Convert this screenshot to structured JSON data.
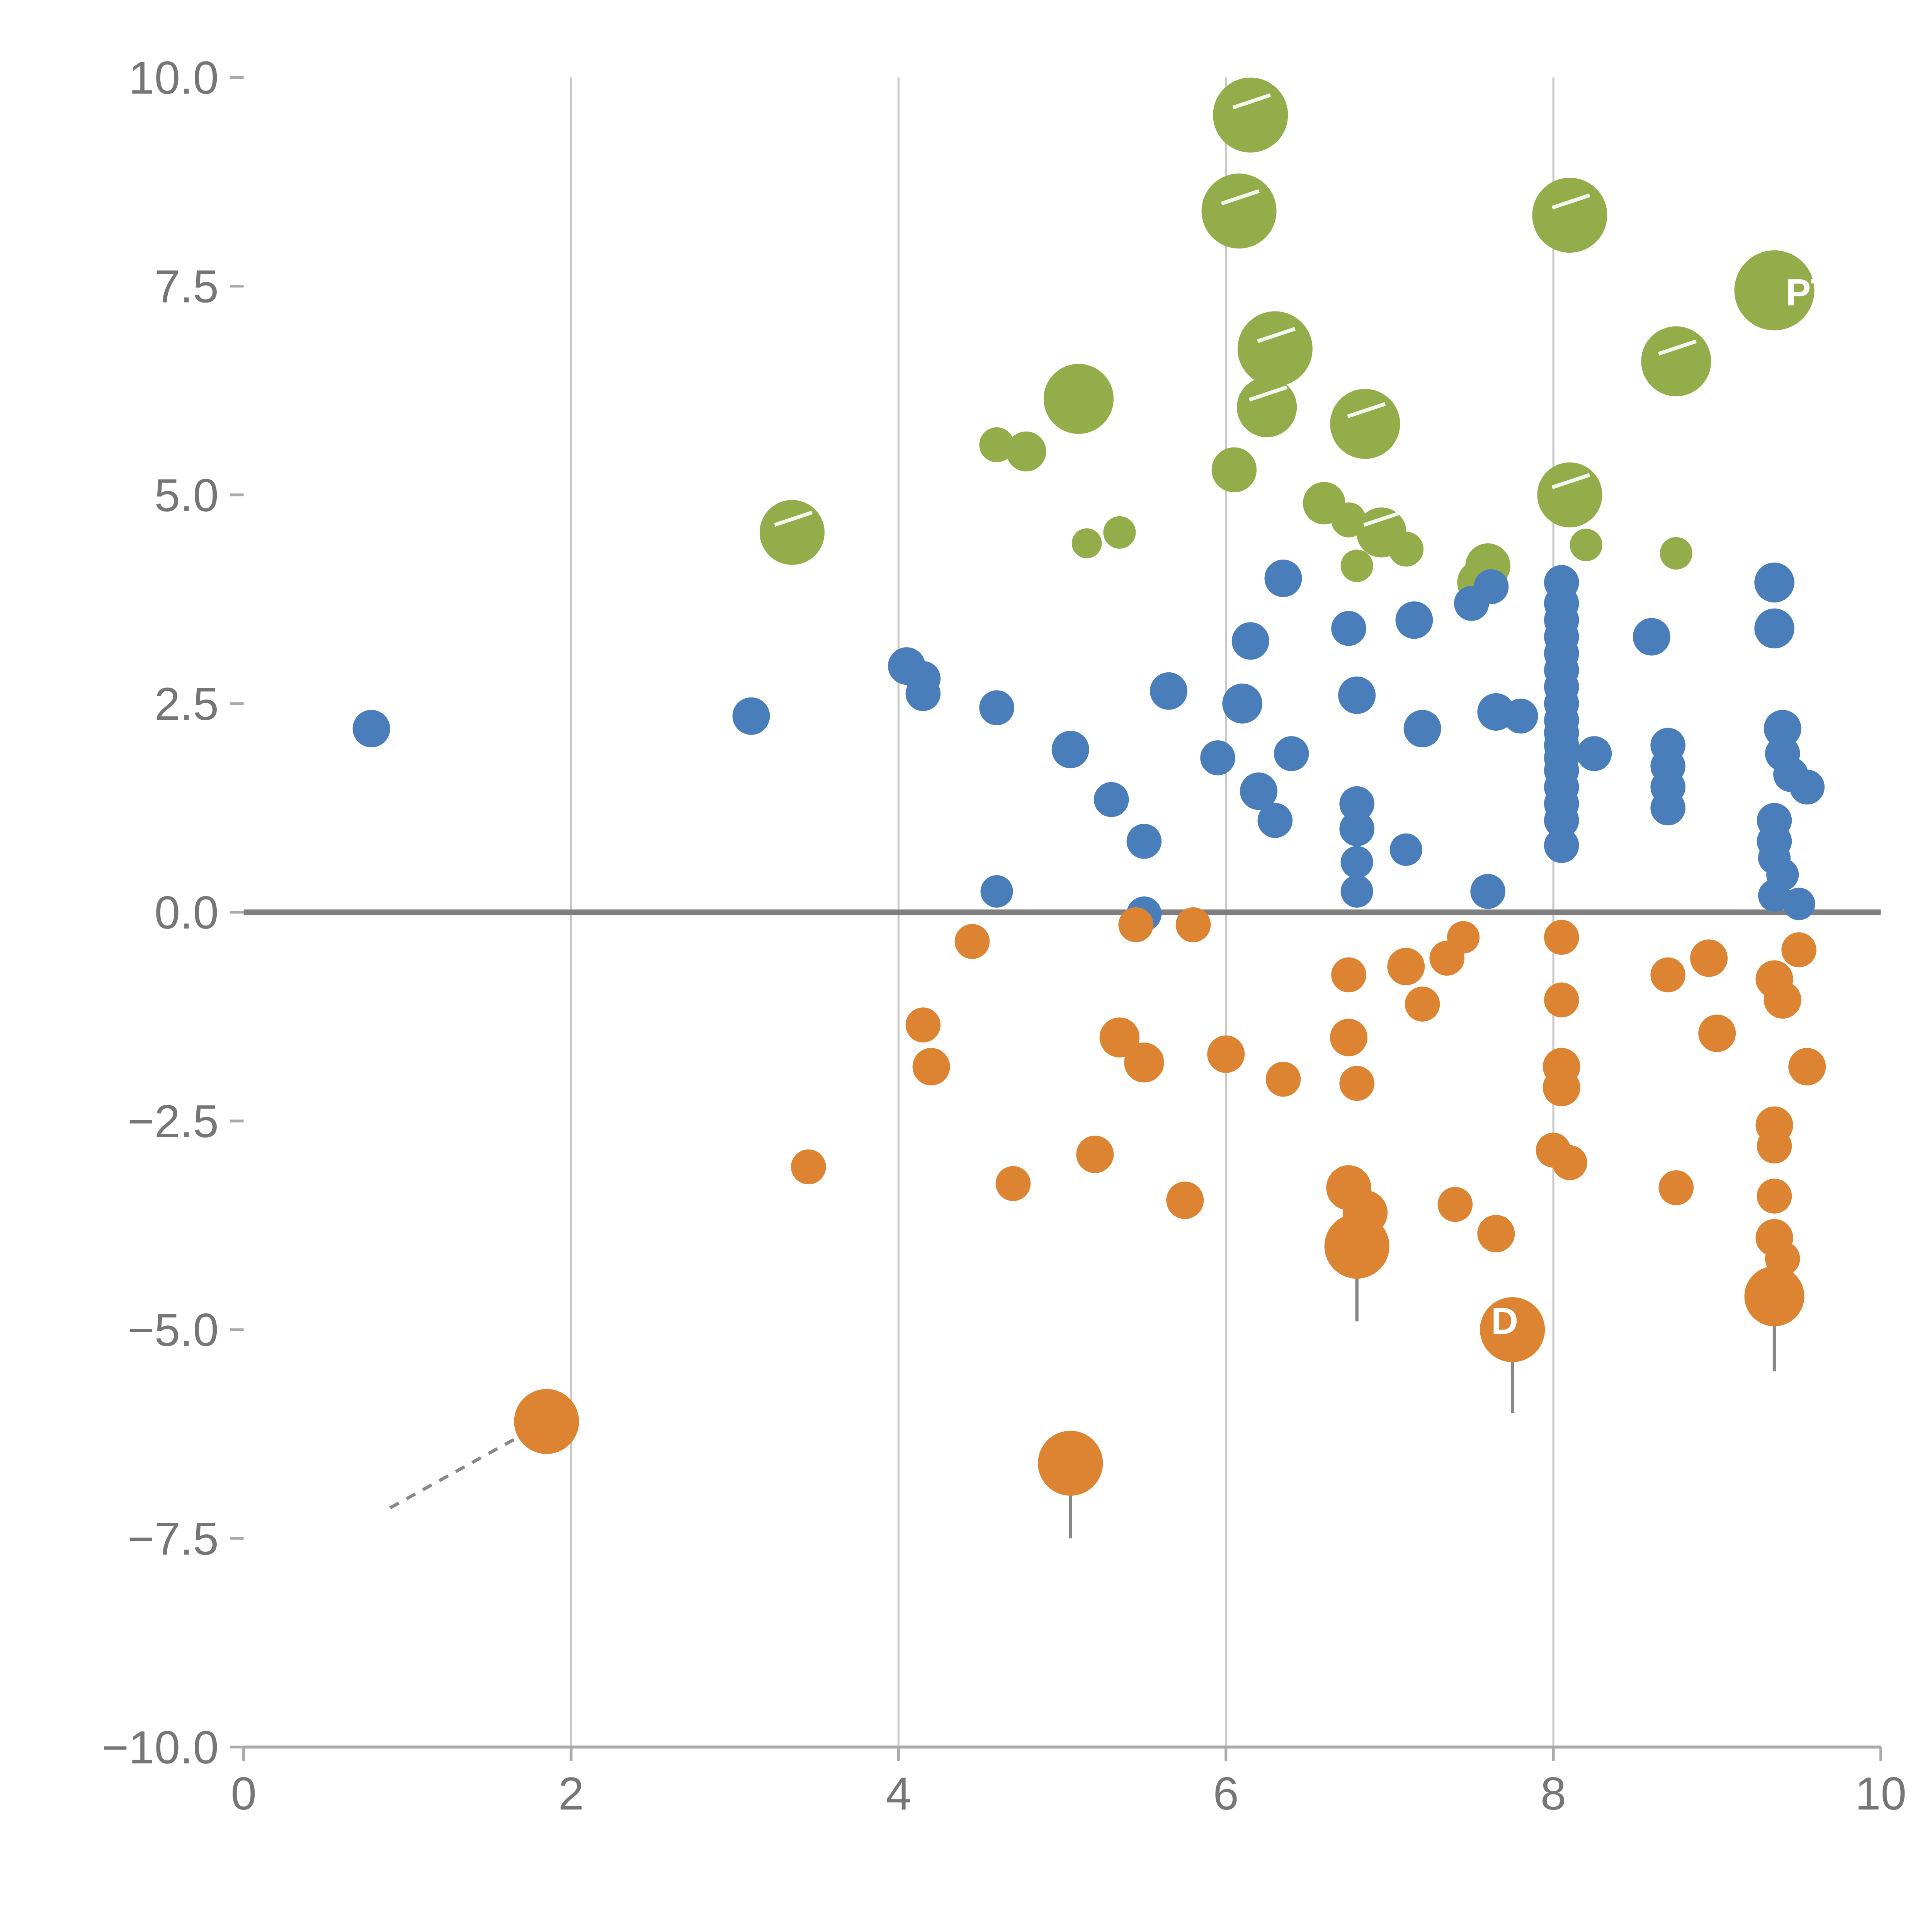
{
  "chart_data": {
    "type": "scatter",
    "title": "",
    "xlabel": "",
    "ylabel": "",
    "xlim": [
      0,
      10
    ],
    "ylim": [
      -10,
      10
    ],
    "grid": "vertical-only",
    "legend": "none",
    "x_tick_values": [
      0,
      2,
      4,
      6,
      8,
      10
    ],
    "x_tick_labels": [
      "0",
      "2",
      "4",
      "6",
      "8",
      "10"
    ],
    "y_tick_values": [
      -10,
      -7.5,
      -5,
      -2.5,
      0,
      2.5,
      5,
      7.5,
      10
    ],
    "y_tick_labels": [
      "−10.0",
      "−7.5",
      "−5.0",
      "−2.5",
      "0.0",
      "2.5",
      "5.0",
      "7.5",
      "10.0"
    ],
    "grid_vertical_at": [
      2,
      4,
      6,
      8
    ],
    "zero_line_y": 0,
    "colors": {
      "green": "#93ad4b",
      "blue": "#4a7ebb",
      "orange": "#dd8432",
      "gridline": "#c9c9c9",
      "zero_line": "#7f7f7f",
      "axis": "#aaaaaa",
      "tick_text": "#767676",
      "pin_line": "#888888"
    },
    "series": [
      {
        "name": "green",
        "color": "#93ad4b",
        "points": [
          [
            6.15,
            9.55,
            30
          ],
          [
            6.08,
            8.4,
            30
          ],
          [
            8.1,
            8.35,
            30
          ],
          [
            9.35,
            7.45,
            32
          ],
          [
            6.3,
            6.75,
            30
          ],
          [
            8.75,
            6.6,
            28
          ],
          [
            5.1,
            6.15,
            28
          ],
          [
            6.25,
            6.05,
            24
          ],
          [
            6.85,
            5.85,
            28
          ],
          [
            4.6,
            5.6,
            14
          ],
          [
            4.78,
            5.52,
            16
          ],
          [
            6.05,
            5.3,
            18
          ],
          [
            8.1,
            5.0,
            26
          ],
          [
            6.6,
            4.9,
            17
          ],
          [
            6.75,
            4.7,
            14
          ],
          [
            6.95,
            4.55,
            20
          ],
          [
            3.35,
            4.55,
            26
          ],
          [
            5.35,
            4.55,
            13
          ],
          [
            5.15,
            4.42,
            12
          ],
          [
            7.1,
            4.35,
            14
          ],
          [
            8.2,
            4.4,
            13
          ],
          [
            6.8,
            4.15,
            13
          ],
          [
            7.6,
            4.15,
            18
          ],
          [
            8.75,
            4.3,
            13
          ],
          [
            7.55,
            3.95,
            18
          ]
        ]
      },
      {
        "name": "blue",
        "color": "#4a7ebb",
        "points": [
          [
            0.78,
            2.2,
            15
          ],
          [
            3.1,
            2.35,
            15
          ],
          [
            4.05,
            2.95,
            15
          ],
          [
            4.15,
            2.8,
            14
          ],
          [
            4.15,
            2.62,
            14
          ],
          [
            4.6,
            2.45,
            14
          ],
          [
            4.6,
            0.25,
            13
          ],
          [
            5.05,
            1.95,
            15
          ],
          [
            5.3,
            1.35,
            14
          ],
          [
            5.5,
            0.85,
            14
          ],
          [
            5.65,
            2.65,
            15
          ],
          [
            5.5,
            -0.02,
            14
          ],
          [
            5.95,
            1.85,
            14
          ],
          [
            6.15,
            3.25,
            15
          ],
          [
            6.1,
            2.5,
            16
          ],
          [
            6.2,
            1.45,
            15
          ],
          [
            6.3,
            1.1,
            14
          ],
          [
            6.4,
            1.9,
            14
          ],
          [
            6.35,
            4.0,
            15
          ],
          [
            6.75,
            3.4,
            14
          ],
          [
            6.8,
            2.6,
            15
          ],
          [
            6.8,
            1.3,
            14
          ],
          [
            6.8,
            1.0,
            14
          ],
          [
            6.8,
            0.6,
            13
          ],
          [
            6.8,
            0.25,
            13
          ],
          [
            7.1,
            0.75,
            13
          ],
          [
            7.15,
            3.5,
            15
          ],
          [
            7.2,
            2.2,
            15
          ],
          [
            7.5,
            3.7,
            14
          ],
          [
            7.62,
            3.9,
            14
          ],
          [
            7.6,
            0.25,
            14
          ],
          [
            7.65,
            2.4,
            15
          ],
          [
            7.8,
            2.35,
            14
          ],
          [
            8.05,
            3.95,
            14
          ],
          [
            8.05,
            3.7,
            14
          ],
          [
            8.05,
            3.5,
            14
          ],
          [
            8.05,
            3.3,
            14
          ],
          [
            8.05,
            3.1,
            14
          ],
          [
            8.05,
            2.9,
            14
          ],
          [
            8.05,
            2.7,
            14
          ],
          [
            8.05,
            2.5,
            14
          ],
          [
            8.05,
            2.3,
            14
          ],
          [
            8.05,
            2.15,
            14
          ],
          [
            8.05,
            2.0,
            14
          ],
          [
            8.05,
            1.85,
            14
          ],
          [
            8.05,
            1.7,
            14
          ],
          [
            8.05,
            1.5,
            14
          ],
          [
            8.05,
            1.3,
            14
          ],
          [
            8.05,
            1.1,
            14
          ],
          [
            8.05,
            0.8,
            14
          ],
          [
            8.25,
            1.9,
            14
          ],
          [
            8.6,
            3.3,
            15
          ],
          [
            8.7,
            2.0,
            14
          ],
          [
            8.7,
            1.75,
            14
          ],
          [
            8.7,
            1.5,
            14
          ],
          [
            8.7,
            1.25,
            14
          ],
          [
            9.35,
            3.95,
            16
          ],
          [
            9.35,
            3.4,
            16
          ],
          [
            9.4,
            2.2,
            15
          ],
          [
            9.4,
            1.9,
            14
          ],
          [
            9.45,
            1.65,
            14
          ],
          [
            9.55,
            1.5,
            14
          ],
          [
            9.35,
            1.1,
            14
          ],
          [
            9.35,
            0.85,
            14
          ],
          [
            9.35,
            0.65,
            13
          ],
          [
            9.4,
            0.45,
            13
          ],
          [
            9.35,
            0.2,
            13
          ],
          [
            9.5,
            0.1,
            13
          ]
        ]
      },
      {
        "name": "orange",
        "color": "#dd8432",
        "points": [
          [
            4.45,
            -0.35,
            14
          ],
          [
            5.45,
            -0.15,
            14
          ],
          [
            5.8,
            -0.15,
            14
          ],
          [
            4.15,
            -1.35,
            14
          ],
          [
            4.2,
            -1.85,
            15
          ],
          [
            5.35,
            -1.5,
            16
          ],
          [
            5.5,
            -1.8,
            16
          ],
          [
            6.0,
            -1.7,
            15
          ],
          [
            6.35,
            -2.0,
            14
          ],
          [
            6.75,
            -0.75,
            14
          ],
          [
            6.75,
            -1.5,
            15
          ],
          [
            6.8,
            -2.05,
            14
          ],
          [
            7.1,
            -0.65,
            15
          ],
          [
            7.2,
            -1.1,
            14
          ],
          [
            7.35,
            -0.55,
            14
          ],
          [
            7.45,
            -0.3,
            13
          ],
          [
            3.45,
            -3.05,
            14
          ],
          [
            4.7,
            -3.25,
            14
          ],
          [
            5.2,
            -2.9,
            15
          ],
          [
            5.75,
            -3.45,
            15
          ],
          [
            6.75,
            -3.3,
            18
          ],
          [
            6.85,
            -3.6,
            18
          ],
          [
            6.8,
            -4.0,
            26
          ],
          [
            7.4,
            -3.5,
            14
          ],
          [
            7.65,
            -3.85,
            15
          ],
          [
            7.75,
            -5.0,
            26
          ],
          [
            8.05,
            -0.3,
            14
          ],
          [
            8.05,
            -1.05,
            14
          ],
          [
            8.05,
            -1.85,
            15
          ],
          [
            8.05,
            -2.1,
            15
          ],
          [
            8.0,
            -2.85,
            14
          ],
          [
            8.1,
            -3.0,
            14
          ],
          [
            8.7,
            -0.75,
            14
          ],
          [
            8.75,
            -3.3,
            14
          ],
          [
            8.95,
            -0.55,
            15
          ],
          [
            9.0,
            -1.45,
            15
          ],
          [
            9.35,
            -0.8,
            15
          ],
          [
            9.4,
            -1.05,
            15
          ],
          [
            9.5,
            -0.45,
            14
          ],
          [
            9.55,
            -1.85,
            15
          ],
          [
            9.35,
            -2.55,
            15
          ],
          [
            9.35,
            -2.8,
            14
          ],
          [
            9.35,
            -3.4,
            14
          ],
          [
            9.35,
            -3.9,
            15
          ],
          [
            9.4,
            -4.15,
            14
          ],
          [
            9.35,
            -4.6,
            24
          ],
          [
            1.85,
            -6.1,
            26
          ],
          [
            5.05,
            -6.6,
            26
          ]
        ]
      }
    ],
    "pins": [
      {
        "from": [
          1.85,
          -6.1
        ],
        "to": [
          0.88,
          -7.15
        ],
        "dashed": true
      },
      {
        "from": [
          5.05,
          -6.6
        ],
        "to": [
          5.05,
          -7.5
        ],
        "dashed": false
      },
      {
        "from": [
          6.8,
          -4.0
        ],
        "to": [
          6.8,
          -4.9
        ],
        "dashed": false
      },
      {
        "from": [
          7.75,
          -5.0
        ],
        "to": [
          7.75,
          -6.0
        ],
        "dashed": false
      },
      {
        "from": [
          9.35,
          -4.6
        ],
        "to": [
          9.35,
          -5.5
        ],
        "dashed": false
      }
    ],
    "bubble_highlights": [
      [
        6.15,
        9.55
      ],
      [
        6.08,
        8.4
      ],
      [
        8.1,
        8.35
      ],
      [
        6.3,
        6.75
      ],
      [
        8.75,
        6.6
      ],
      [
        6.85,
        5.85
      ],
      [
        8.1,
        5.0
      ],
      [
        6.95,
        4.55
      ],
      [
        6.25,
        6.05
      ],
      [
        3.35,
        4.55
      ]
    ],
    "annotations": [
      {
        "text": "PT",
        "x": 9.42,
        "y": 7.42
      },
      {
        "text": "D",
        "x": 7.62,
        "y": -4.9
      }
    ]
  }
}
